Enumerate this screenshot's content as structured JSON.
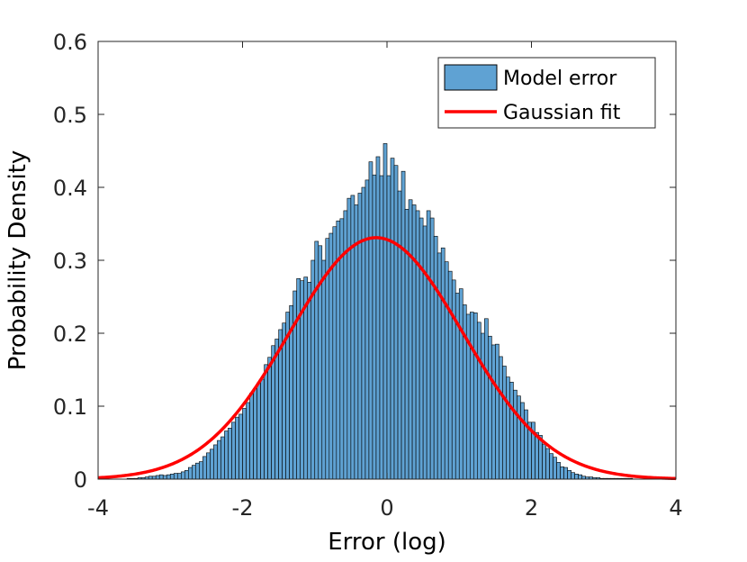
{
  "chart_data": {
    "type": "bar",
    "xlabel": "Error (log)",
    "ylabel": "Probability Density",
    "xlim": [
      -4,
      4
    ],
    "ylim": [
      0,
      0.6
    ],
    "x_ticks": [
      -4,
      -2,
      0,
      2,
      4
    ],
    "y_ticks": [
      0,
      0.1,
      0.2,
      0.3,
      0.4,
      0.5,
      0.6
    ],
    "legend_position": "top-right",
    "grid": false,
    "series": [
      {
        "name": "Model error",
        "kind": "histogram",
        "color": "#5fa2d3",
        "bin_width": 0.05,
        "bin_centers": [
          -3.575,
          -3.525,
          -3.475,
          -3.425,
          -3.375,
          -3.325,
          -3.275,
          -3.225,
          -3.175,
          -3.125,
          -3.075,
          -3.025,
          -2.975,
          -2.925,
          -2.875,
          -2.825,
          -2.775,
          -2.725,
          -2.675,
          -2.625,
          -2.575,
          -2.525,
          -2.475,
          -2.425,
          -2.375,
          -2.325,
          -2.275,
          -2.225,
          -2.175,
          -2.125,
          -2.075,
          -2.025,
          -1.975,
          -1.925,
          -1.875,
          -1.825,
          -1.775,
          -1.725,
          -1.675,
          -1.625,
          -1.575,
          -1.525,
          -1.475,
          -1.425,
          -1.375,
          -1.325,
          -1.275,
          -1.225,
          -1.175,
          -1.125,
          -1.075,
          -1.025,
          -0.975,
          -0.925,
          -0.875,
          -0.825,
          -0.775,
          -0.725,
          -0.675,
          -0.625,
          -0.575,
          -0.525,
          -0.475,
          -0.425,
          -0.375,
          -0.325,
          -0.275,
          -0.225,
          -0.175,
          -0.125,
          -0.075,
          -0.025,
          0.025,
          0.075,
          0.125,
          0.175,
          0.225,
          0.275,
          0.325,
          0.375,
          0.425,
          0.475,
          0.525,
          0.575,
          0.625,
          0.675,
          0.725,
          0.775,
          0.825,
          0.875,
          0.925,
          0.975,
          1.025,
          1.075,
          1.125,
          1.175,
          1.225,
          1.275,
          1.325,
          1.375,
          1.425,
          1.475,
          1.525,
          1.575,
          1.625,
          1.675,
          1.725,
          1.775,
          1.825,
          1.875,
          1.925,
          1.975,
          2.025,
          2.075,
          2.125,
          2.175,
          2.225,
          2.275,
          2.325,
          2.375,
          2.425,
          2.475,
          2.525,
          2.575,
          2.625,
          2.675,
          2.725,
          2.775,
          2.825,
          2.875,
          2.925,
          2.975,
          3.025,
          3.075,
          3.125,
          3.175,
          3.225,
          3.275,
          3.325,
          3.375
        ],
        "values": [
          0.001,
          0.001,
          0.001,
          0.002,
          0.002,
          0.003,
          0.004,
          0.004,
          0.005,
          0.006,
          0.005,
          0.006,
          0.007,
          0.008,
          0.008,
          0.01,
          0.012,
          0.016,
          0.019,
          0.022,
          0.024,
          0.031,
          0.036,
          0.041,
          0.047,
          0.053,
          0.058,
          0.066,
          0.07,
          0.078,
          0.085,
          0.089,
          0.097,
          0.105,
          0.118,
          0.124,
          0.132,
          0.137,
          0.157,
          0.167,
          0.183,
          0.192,
          0.205,
          0.214,
          0.229,
          0.238,
          0.258,
          0.275,
          0.272,
          0.277,
          0.27,
          0.3,
          0.326,
          0.32,
          0.3,
          0.33,
          0.337,
          0.346,
          0.354,
          0.357,
          0.368,
          0.385,
          0.389,
          0.376,
          0.392,
          0.4,
          0.41,
          0.435,
          0.417,
          0.442,
          0.416,
          0.46,
          0.416,
          0.44,
          0.43,
          0.395,
          0.422,
          0.37,
          0.383,
          0.376,
          0.368,
          0.358,
          0.347,
          0.368,
          0.358,
          0.333,
          0.31,
          0.317,
          0.298,
          0.285,
          0.273,
          0.255,
          0.261,
          0.239,
          0.226,
          0.229,
          0.228,
          0.215,
          0.2,
          0.22,
          0.196,
          0.184,
          0.185,
          0.168,
          0.155,
          0.14,
          0.133,
          0.122,
          0.114,
          0.105,
          0.095,
          0.078,
          0.078,
          0.064,
          0.06,
          0.048,
          0.042,
          0.035,
          0.03,
          0.023,
          0.017,
          0.016,
          0.012,
          0.009,
          0.007,
          0.006,
          0.004,
          0.003,
          0.003,
          0.002,
          0.002,
          0.001,
          0.001,
          0.001,
          0.001,
          0.001,
          0.001,
          0.001,
          0.001,
          0.001
        ]
      },
      {
        "name": "Gaussian fit",
        "kind": "line",
        "color": "#ff0000",
        "mu": -0.15,
        "sigma": 1.2,
        "peak": 0.331
      }
    ]
  }
}
